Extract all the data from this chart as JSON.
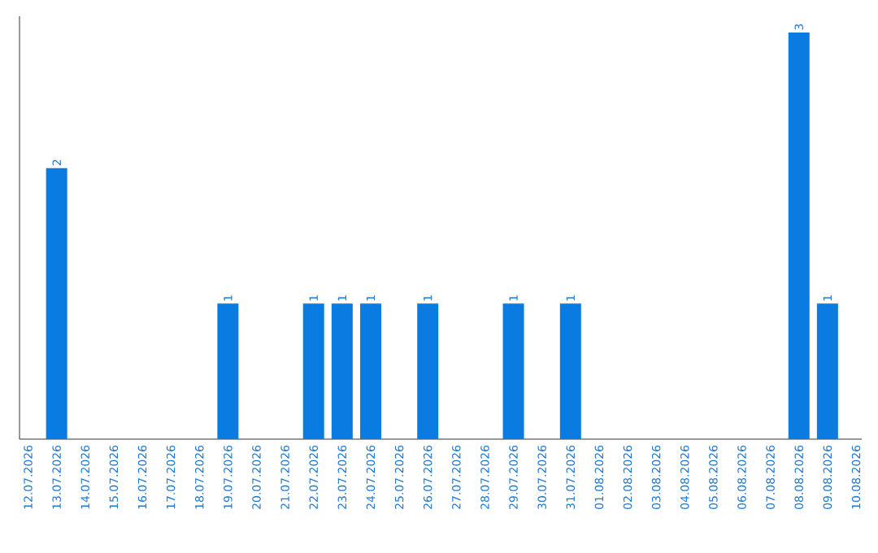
{
  "chart_data": {
    "type": "bar",
    "categories": [
      "12.07.2026",
      "13.07.2026",
      "14.07.2026",
      "15.07.2026",
      "16.07.2026",
      "17.07.2026",
      "18.07.2026",
      "19.07.2026",
      "20.07.2026",
      "21.07.2026",
      "22.07.2026",
      "23.07.2026",
      "24.07.2026",
      "25.07.2026",
      "26.07.2026",
      "27.07.2026",
      "28.07.2026",
      "29.07.2026",
      "30.07.2026",
      "31.07.2026",
      "01.08.2026",
      "02.08.2026",
      "03.08.2026",
      "04.08.2026",
      "05.08.2026",
      "06.08.2026",
      "07.08.2026",
      "08.08.2026",
      "09.08.2026",
      "10.08.2026"
    ],
    "values": [
      0,
      2,
      0,
      0,
      0,
      0,
      0,
      1,
      0,
      0,
      1,
      1,
      1,
      0,
      1,
      0,
      0,
      1,
      0,
      1,
      0,
      0,
      0,
      0,
      0,
      0,
      0,
      3,
      1,
      0
    ],
    "value_labels": [
      null,
      "2",
      null,
      null,
      null,
      null,
      null,
      "1",
      null,
      null,
      "1",
      "1",
      "1",
      null,
      "1",
      null,
      null,
      "1",
      null,
      "1",
      null,
      null,
      null,
      null,
      null,
      null,
      null,
      "3",
      "1",
      null
    ],
    "color": "#0a7be0",
    "ylim": [
      0,
      3.12
    ],
    "tick_labels": "x"
  }
}
